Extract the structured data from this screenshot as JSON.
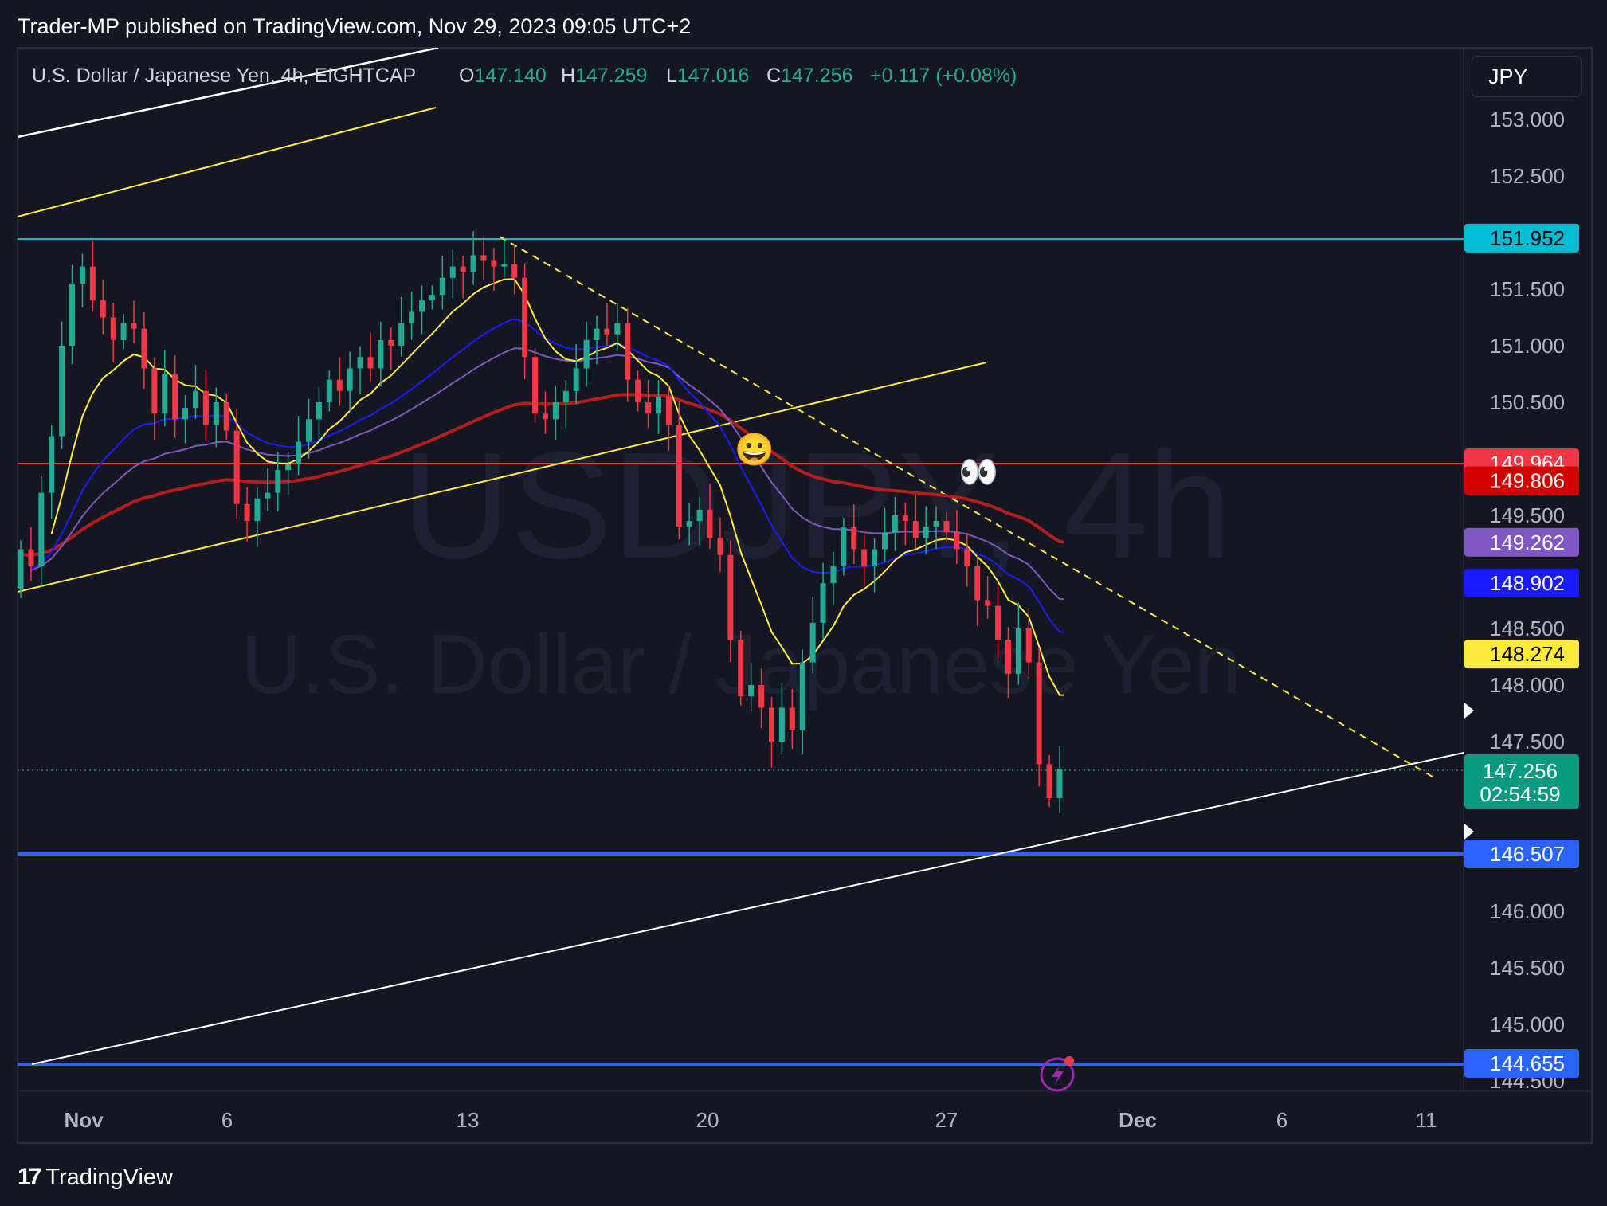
{
  "header": {
    "published_by": "Trader-MP published on TradingView.com, Nov 29, 2023 09:05 UTC+2"
  },
  "legend": {
    "symbol_desc": "U.S. Dollar / Japanese Yen, 4h, EIGHTCAP",
    "o_label": "O",
    "o_value": "147.140",
    "h_label": "H",
    "h_value": "147.259",
    "l_label": "L",
    "l_value": "147.016",
    "c_label": "C",
    "c_value": "147.256",
    "change": "+0.117 (+0.08%)"
  },
  "currency_button": "JPY",
  "watermark": {
    "symbol": "USDJPY, 4h",
    "name": "U.S. Dollar / Japanese Yen"
  },
  "footer": {
    "brand": "TradingView",
    "mark": "17"
  },
  "colors": {
    "background": "#141722",
    "up": "#22ab94",
    "down": "#f23645",
    "cyan_line": "#00bcd4",
    "red_line": "#f23645",
    "blue_line": "#2962ff",
    "yellow": "#ffeb3b",
    "white": "#ffffff",
    "ma_red": "#b71c1c",
    "ma_blue": "#1a1aff",
    "ma_purple": "#7e57c2",
    "text": "#b2b5be"
  },
  "chart_data": {
    "type": "candlestick",
    "title": "U.S. Dollar / Japanese Yen, 4h, EIGHTCAP",
    "ylim": [
      144.4,
      153.5
    ],
    "y_ticks": [
      "153.000",
      "152.500",
      "151.500",
      "151.000",
      "150.500",
      "149.500",
      "148.500",
      "148.000",
      "147.500",
      "146.000",
      "145.500",
      "145.000",
      "144.500"
    ],
    "x_ticks": [
      "Nov",
      "6",
      "13",
      "20",
      "27",
      "Dec",
      "6",
      "11"
    ],
    "price_labels": [
      {
        "value": "151.952",
        "bg": "#00bcd4",
        "fg": "#000000",
        "name": "cyan-level"
      },
      {
        "value": "149.964",
        "bg": "#f23645",
        "fg": "#ffffff",
        "name": "red-level"
      },
      {
        "value": "149.806",
        "bg": "#d50000",
        "fg": "#ffffff",
        "name": "ema-red"
      },
      {
        "value": "149.262",
        "bg": "#7e57c2",
        "fg": "#ffffff",
        "name": "ema-purple"
      },
      {
        "value": "148.902",
        "bg": "#1a1aff",
        "fg": "#ffffff",
        "name": "ema-blue"
      },
      {
        "value": "148.274",
        "bg": "#ffeb3b",
        "fg": "#000000",
        "name": "ema-yellow"
      },
      {
        "value": "146.507",
        "bg": "#2962ff",
        "fg": "#ffffff",
        "name": "blue-level-1"
      },
      {
        "value": "144.655",
        "bg": "#2962ff",
        "fg": "#ffffff",
        "name": "blue-level-2"
      }
    ],
    "last_price": {
      "value": "147.256",
      "countdown": "02:54:59",
      "bg": "#089981"
    },
    "horizontal_levels": [
      151.952,
      149.964,
      146.507,
      144.655
    ],
    "candles_close": [
      149.2,
      149.05,
      149.7,
      150.2,
      151.0,
      151.55,
      151.7,
      151.4,
      151.25,
      151.05,
      151.2,
      151.15,
      150.8,
      150.4,
      150.75,
      150.35,
      150.45,
      150.6,
      150.3,
      150.5,
      150.25,
      149.6,
      149.45,
      149.65,
      149.7,
      149.9,
      149.95,
      150.15,
      150.35,
      150.5,
      150.7,
      150.6,
      150.8,
      150.9,
      150.8,
      151.05,
      151.0,
      151.2,
      151.3,
      151.4,
      151.45,
      151.6,
      151.7,
      151.65,
      151.8,
      151.75,
      151.7,
      151.72,
      151.6,
      150.9,
      150.4,
      150.35,
      150.5,
      150.6,
      150.8,
      151.05,
      151.15,
      151.1,
      151.2,
      150.7,
      150.5,
      150.4,
      150.55,
      150.3,
      149.4,
      149.45,
      149.55,
      149.3,
      149.15,
      148.4,
      147.9,
      148.0,
      147.8,
      147.5,
      147.8,
      147.6,
      148.2,
      148.55,
      148.9,
      149.05,
      149.4,
      149.2,
      149.05,
      149.2,
      149.35,
      149.5,
      149.45,
      149.3,
      149.4,
      149.45,
      149.35,
      149.2,
      149.05,
      148.75,
      148.7,
      148.4,
      148.1,
      148.5,
      148.2,
      147.3,
      147.0,
      147.26
    ],
    "notes": {
      "emoji_1": "😀",
      "emoji_2": "👀"
    }
  }
}
